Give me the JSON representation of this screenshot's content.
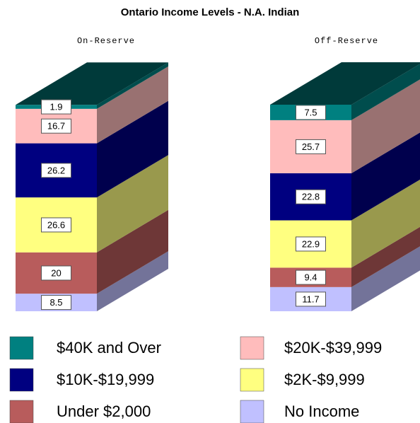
{
  "chart_data": {
    "type": "stacked_bar_3d",
    "title": "Ontario Income Levels - N.A. Indian",
    "categories": [
      "On-Reserve",
      "Off-Reserve"
    ],
    "series": [
      {
        "name": "No Income",
        "color": "#c0c0ff",
        "values": [
          8.5,
          11.7
        ]
      },
      {
        "name": "Under $2,000",
        "color": "#b85c5c",
        "values": [
          20,
          9.4
        ]
      },
      {
        "name": "$2K-$9,999",
        "color": "#ffff80",
        "values": [
          26.6,
          22.9
        ]
      },
      {
        "name": "$10K-$19,999",
        "color": "#000080",
        "values": [
          26.2,
          22.8
        ]
      },
      {
        "name": "$20K-$39,999",
        "color": "#ffbcbc",
        "values": [
          16.7,
          25.7
        ]
      },
      {
        "name": "$40K and Over",
        "color": "#008080",
        "values": [
          1.9,
          7.5
        ]
      }
    ]
  }
}
